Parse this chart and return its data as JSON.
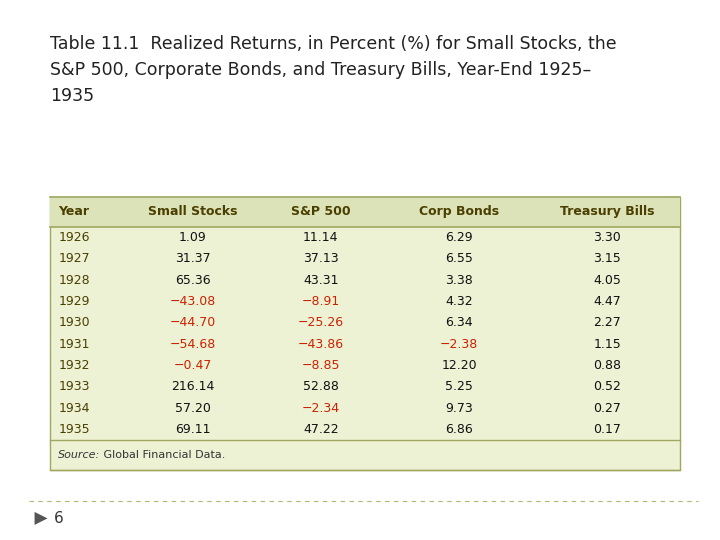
{
  "title_line1": "Table 11.1  Realized Returns, in Percent (%) for Small Stocks, the",
  "title_line2": "S&P 500, Corporate Bonds, and Treasury Bills, Year-End 1925–",
  "title_line3": "1935",
  "columns": [
    "Year",
    "Small Stocks",
    "S&P 500",
    "Corp Bonds",
    "Treasury Bills"
  ],
  "rows": [
    [
      "1926",
      "1.09",
      "11.14",
      "6.29",
      "3.30"
    ],
    [
      "1927",
      "31.37",
      "37.13",
      "6.55",
      "3.15"
    ],
    [
      "1928",
      "65.36",
      "43.31",
      "3.38",
      "4.05"
    ],
    [
      "1929",
      "−43.08",
      "−8.91",
      "4.32",
      "4.47"
    ],
    [
      "1930",
      "−44.70",
      "−25.26",
      "6.34",
      "2.27"
    ],
    [
      "1931",
      "−54.68",
      "−43.86",
      "−2.38",
      "1.15"
    ],
    [
      "1932",
      "−0.47",
      "−8.85",
      "12.20",
      "0.88"
    ],
    [
      "1933",
      "216.14",
      "52.88",
      "5.25",
      "0.52"
    ],
    [
      "1934",
      "57.20",
      "−2.34",
      "9.73",
      "0.27"
    ],
    [
      "1935",
      "69.11",
      "47.22",
      "6.86",
      "0.17"
    ]
  ],
  "negative_color": "#cc2200",
  "positive_color": "#111111",
  "header_text_color": "#4a3f00",
  "year_text_color": "#4a3f00",
  "header_bg_color": "#dde3b8",
  "row_bg_color": "#eef2d5",
  "table_border_color": "#a0a860",
  "source_text_italic": "Source:",
  "source_text_normal": " Global Financial Data.",
  "title_fontsize": 12.5,
  "table_fontsize": 9.0,
  "page_number": "6",
  "bg_color": "#ffffff",
  "dash_color": "#b0b870"
}
